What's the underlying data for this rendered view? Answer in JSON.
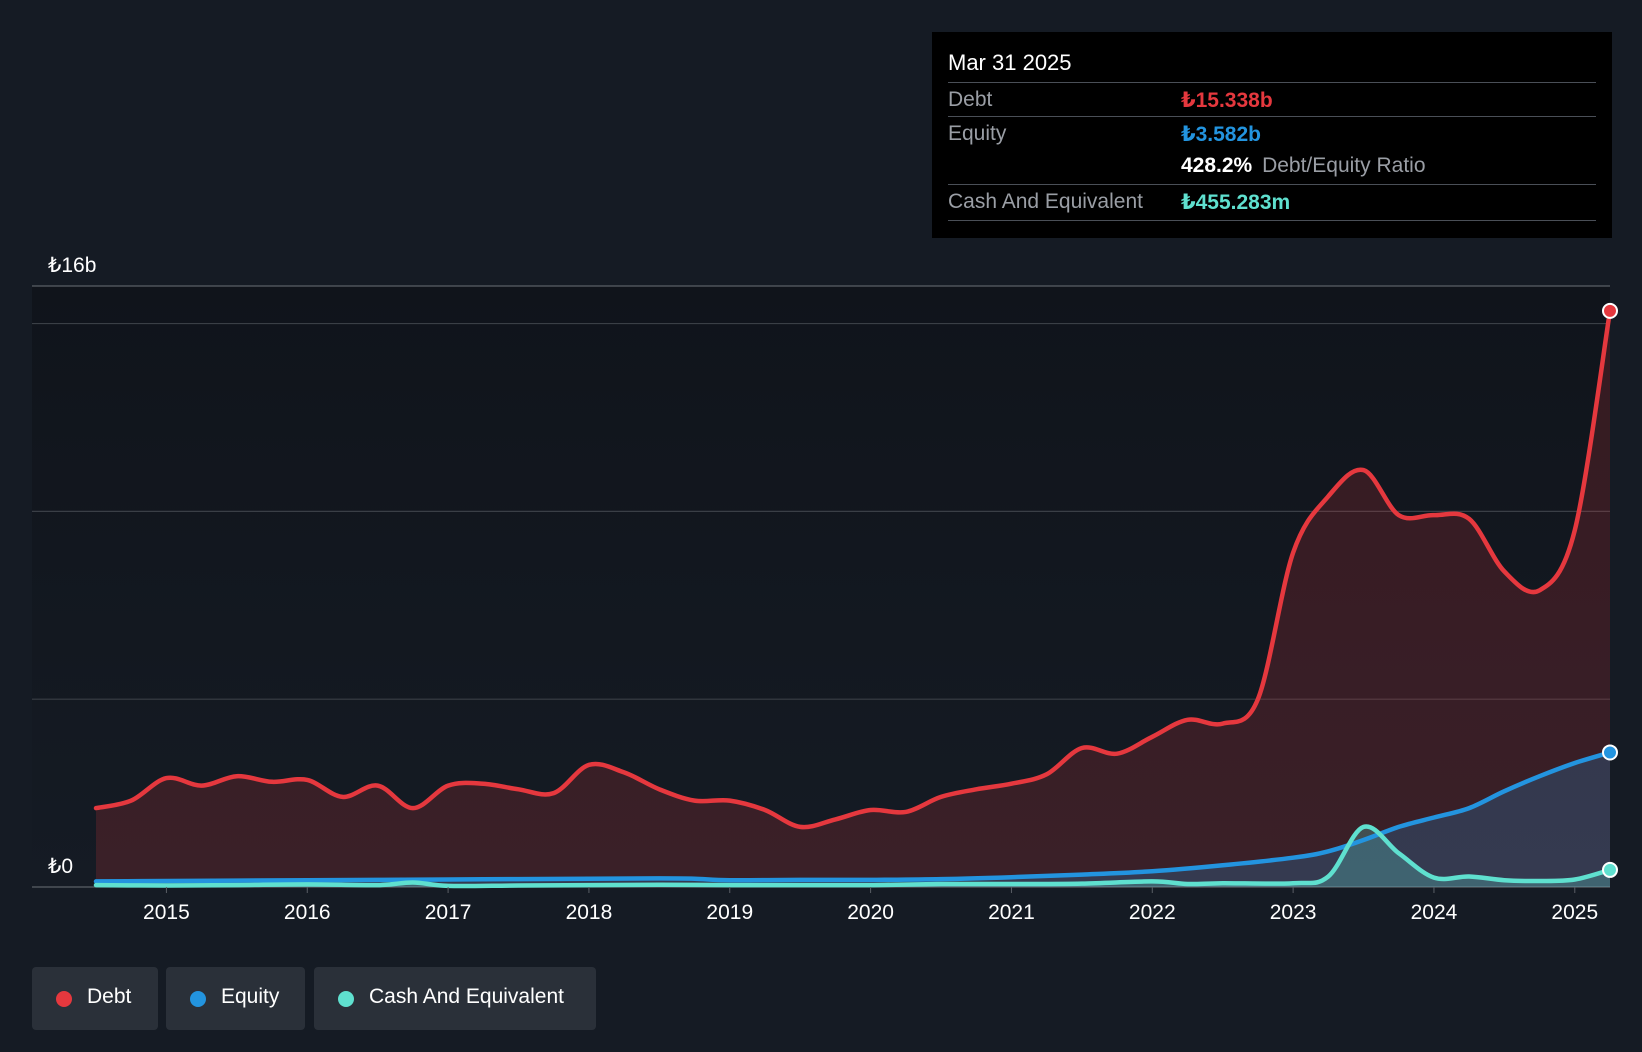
{
  "tooltip": {
    "date": "Mar 31 2025",
    "debt_label": "Debt",
    "debt_value": "₺15.338b",
    "equity_label": "Equity",
    "equity_value": "₺3.582b",
    "ratio_value": "428.2%",
    "ratio_label": "Debt/Equity Ratio",
    "cash_label": "Cash And Equivalent",
    "cash_value": "₺455.283m"
  },
  "legend": [
    {
      "label": "Debt",
      "color": "#e5383e"
    },
    {
      "label": "Equity",
      "color": "#2394df"
    },
    {
      "label": "Cash And Equivalent",
      "color": "#5fe0cf"
    }
  ],
  "chart_data": {
    "type": "area",
    "ylim": [
      0,
      16
    ],
    "y_unit": "billion TRY",
    "y_tick_labels": [
      {
        "value": 16,
        "label": "₺16b"
      },
      {
        "value": 0,
        "label": "₺0"
      }
    ],
    "gridlines": [
      15,
      10,
      5
    ],
    "xlim": [
      2014.5,
      2025.25
    ],
    "x_ticks": [
      2015,
      2016,
      2017,
      2018,
      2019,
      2020,
      2021,
      2022,
      2023,
      2024,
      2025
    ],
    "series": [
      {
        "name": "Debt",
        "color": "#e5383e",
        "points": [
          [
            2014.5,
            2.1
          ],
          [
            2014.75,
            2.3
          ],
          [
            2015.0,
            2.9
          ],
          [
            2015.25,
            2.7
          ],
          [
            2015.5,
            2.95
          ],
          [
            2015.75,
            2.8
          ],
          [
            2016.0,
            2.85
          ],
          [
            2016.25,
            2.4
          ],
          [
            2016.5,
            2.7
          ],
          [
            2016.75,
            2.1
          ],
          [
            2017.0,
            2.7
          ],
          [
            2017.25,
            2.75
          ],
          [
            2017.5,
            2.6
          ],
          [
            2017.75,
            2.5
          ],
          [
            2018.0,
            3.25
          ],
          [
            2018.25,
            3.05
          ],
          [
            2018.5,
            2.6
          ],
          [
            2018.75,
            2.3
          ],
          [
            2019.0,
            2.3
          ],
          [
            2019.25,
            2.05
          ],
          [
            2019.5,
            1.6
          ],
          [
            2019.75,
            1.8
          ],
          [
            2020.0,
            2.05
          ],
          [
            2020.25,
            2.0
          ],
          [
            2020.5,
            2.4
          ],
          [
            2020.75,
            2.6
          ],
          [
            2021.0,
            2.75
          ],
          [
            2021.25,
            3.0
          ],
          [
            2021.5,
            3.7
          ],
          [
            2021.75,
            3.55
          ],
          [
            2022.0,
            4.0
          ],
          [
            2022.25,
            4.45
          ],
          [
            2022.5,
            4.35
          ],
          [
            2022.75,
            5.0
          ],
          [
            2023.0,
            8.9
          ],
          [
            2023.25,
            10.4
          ],
          [
            2023.5,
            11.1
          ],
          [
            2023.75,
            9.9
          ],
          [
            2024.0,
            9.9
          ],
          [
            2024.25,
            9.8
          ],
          [
            2024.5,
            8.4
          ],
          [
            2024.75,
            7.9
          ],
          [
            2025.0,
            9.5
          ],
          [
            2025.25,
            15.338
          ]
        ]
      },
      {
        "name": "Equity",
        "color": "#2394df",
        "points": [
          [
            2014.5,
            0.15
          ],
          [
            2015.0,
            0.16
          ],
          [
            2015.5,
            0.17
          ],
          [
            2016.0,
            0.18
          ],
          [
            2016.5,
            0.19
          ],
          [
            2017.0,
            0.2
          ],
          [
            2017.5,
            0.21
          ],
          [
            2018.0,
            0.22
          ],
          [
            2018.5,
            0.23
          ],
          [
            2018.75,
            0.22
          ],
          [
            2019.0,
            0.18
          ],
          [
            2019.5,
            0.19
          ],
          [
            2020.0,
            0.19
          ],
          [
            2020.5,
            0.21
          ],
          [
            2021.0,
            0.26
          ],
          [
            2021.5,
            0.33
          ],
          [
            2022.0,
            0.42
          ],
          [
            2022.5,
            0.58
          ],
          [
            2023.0,
            0.78
          ],
          [
            2023.25,
            0.95
          ],
          [
            2023.5,
            1.25
          ],
          [
            2023.75,
            1.6
          ],
          [
            2024.0,
            1.85
          ],
          [
            2024.25,
            2.1
          ],
          [
            2024.5,
            2.55
          ],
          [
            2024.75,
            2.95
          ],
          [
            2025.0,
            3.3
          ],
          [
            2025.25,
            3.582
          ]
        ]
      },
      {
        "name": "Cash And Equivalent",
        "color": "#5fe0cf",
        "points": [
          [
            2014.5,
            0.05
          ],
          [
            2015.0,
            0.04
          ],
          [
            2015.5,
            0.05
          ],
          [
            2016.0,
            0.07
          ],
          [
            2016.5,
            0.05
          ],
          [
            2016.75,
            0.12
          ],
          [
            2017.0,
            0.03
          ],
          [
            2017.5,
            0.04
          ],
          [
            2018.0,
            0.05
          ],
          [
            2018.5,
            0.06
          ],
          [
            2019.0,
            0.05
          ],
          [
            2019.5,
            0.05
          ],
          [
            2020.0,
            0.05
          ],
          [
            2020.5,
            0.08
          ],
          [
            2021.0,
            0.08
          ],
          [
            2021.5,
            0.09
          ],
          [
            2022.0,
            0.15
          ],
          [
            2022.25,
            0.08
          ],
          [
            2022.5,
            0.1
          ],
          [
            2023.0,
            0.1
          ],
          [
            2023.25,
            0.28
          ],
          [
            2023.5,
            1.6
          ],
          [
            2023.75,
            0.9
          ],
          [
            2024.0,
            0.25
          ],
          [
            2024.25,
            0.28
          ],
          [
            2024.5,
            0.18
          ],
          [
            2024.75,
            0.16
          ],
          [
            2025.0,
            0.2
          ],
          [
            2025.25,
            0.455
          ]
        ]
      }
    ]
  }
}
